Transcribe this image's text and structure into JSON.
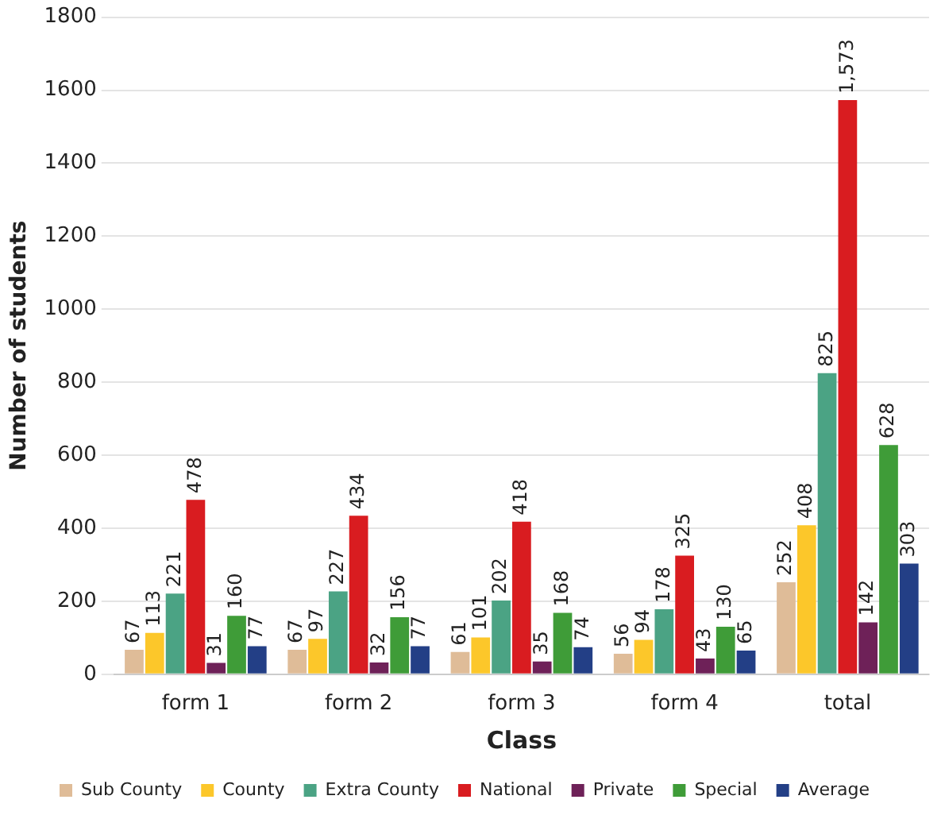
{
  "chart_data": {
    "type": "bar",
    "xlabel": "Class",
    "ylabel": "Number of students",
    "categories": [
      "form 1",
      "form 2",
      "form 3",
      "form 4",
      "total"
    ],
    "series": [
      {
        "name": "Sub County",
        "color": "#dfbc98",
        "values": [
          67,
          67,
          61,
          56,
          252
        ],
        "value_labels": [
          "67",
          "67",
          "61",
          "56",
          "252"
        ]
      },
      {
        "name": "County",
        "color": "#fcc72a",
        "values": [
          113,
          97,
          101,
          94,
          408
        ],
        "value_labels": [
          "113",
          "97",
          "101",
          "94",
          "408"
        ]
      },
      {
        "name": "Extra County",
        "color": "#4ba384",
        "values": [
          221,
          227,
          202,
          178,
          825
        ],
        "value_labels": [
          "221",
          "227",
          "202",
          "178",
          "825"
        ]
      },
      {
        "name": "National",
        "color": "#d91c20",
        "values": [
          478,
          434,
          418,
          325,
          1573
        ],
        "value_labels": [
          "478",
          "434",
          "418",
          "325",
          "1,573"
        ]
      },
      {
        "name": "Private",
        "color": "#6e2158",
        "values": [
          31,
          32,
          35,
          43,
          142
        ],
        "value_labels": [
          "31",
          "32",
          "35",
          "43",
          "142"
        ]
      },
      {
        "name": "Special",
        "color": "#3f9c38",
        "values": [
          160,
          156,
          168,
          130,
          628
        ],
        "value_labels": [
          "160",
          "156",
          "168",
          "130",
          "628"
        ]
      },
      {
        "name": "Average",
        "color": "#233f86",
        "values": [
          77,
          77,
          74,
          65,
          303
        ],
        "value_labels": [
          "77",
          "77",
          "74",
          "65",
          "303"
        ]
      }
    ],
    "ylim": [
      0,
      1800
    ],
    "yticks": [
      0,
      200,
      400,
      600,
      800,
      1000,
      1200,
      1400,
      1600,
      1800
    ],
    "grid": "y",
    "legend": "bottom"
  }
}
